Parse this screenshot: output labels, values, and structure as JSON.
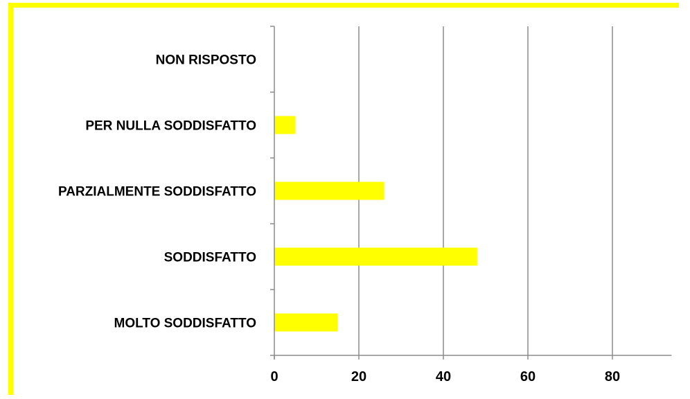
{
  "chart_data": {
    "type": "bar",
    "orientation": "horizontal",
    "categories": [
      "NON RISPOSTO",
      "PER NULLA SODDISFATTO",
      "PARZIALMENTE SODDISFATTO",
      "SODDISFATTO",
      "MOLTO SODDISFATTO"
    ],
    "values": [
      0,
      5,
      26,
      48,
      15
    ],
    "xlim": [
      0,
      94
    ],
    "xticks": [
      0,
      20,
      40,
      60,
      80
    ],
    "grid": "vertical",
    "legend": "none",
    "title": "",
    "xlabel": "",
    "ylabel": ""
  },
  "colors": {
    "bar": "#ffff00",
    "frame": "#ffff00",
    "gridline": "#8c8c8c",
    "axis": "#8c8c8c",
    "text": "#000000"
  }
}
